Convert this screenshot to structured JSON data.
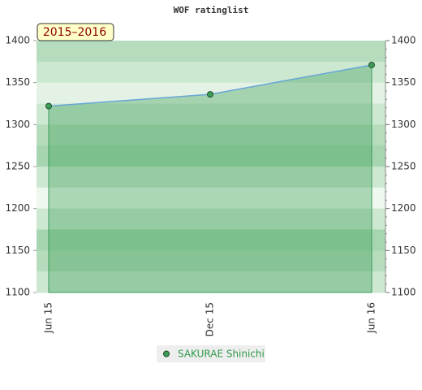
{
  "chart_data": {
    "type": "line",
    "title": "WOF ratinglist",
    "badge": "2015–2016",
    "categories": [
      "Jun 15",
      "Dec 15",
      "Jun 16"
    ],
    "series": [
      {
        "name": "SAKURAE Shinichi",
        "color": "#3d9c5a",
        "values": [
          1322,
          1336,
          1371
        ]
      }
    ],
    "ylim": [
      1100,
      1400
    ],
    "yticks": [
      1100,
      1150,
      1200,
      1250,
      1300,
      1350,
      1400
    ],
    "y2lim": [
      1100,
      1400
    ],
    "y2ticks": [
      1100,
      1150,
      1200,
      1250,
      1300,
      1350,
      1400
    ],
    "area": true
  }
}
